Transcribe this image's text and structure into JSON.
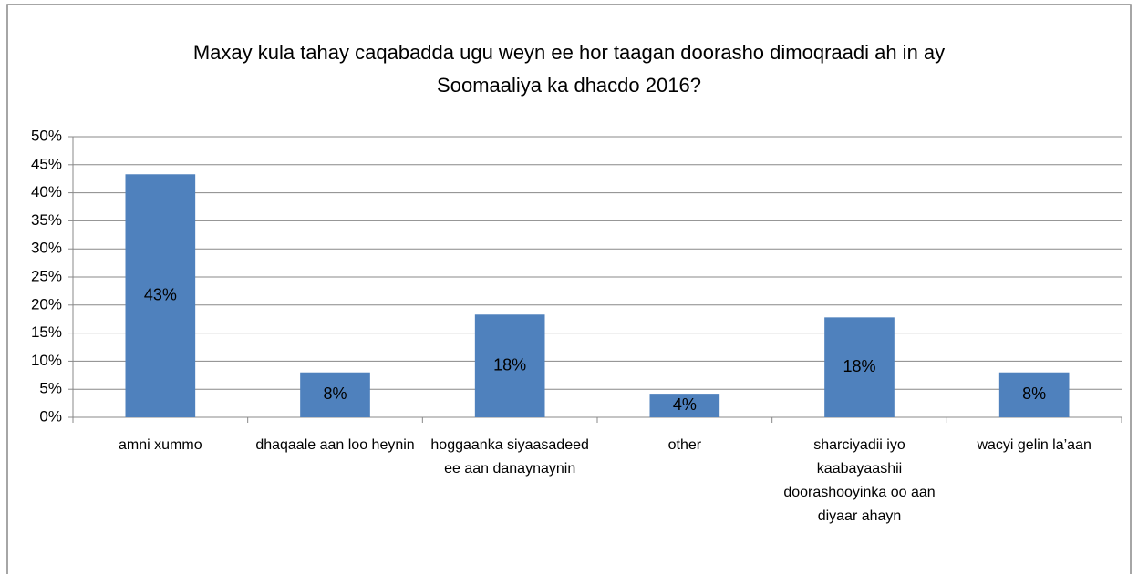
{
  "chart_data": {
    "type": "bar",
    "title": "Maxay kula tahay caqabadda ugu weyn ee hor taagan doorasho dimoqraadi ah in ay Soomaaliya ka dhacdo 2016?",
    "categories": [
      "amni xummo",
      "dhaqaale aan loo heynin",
      "hoggaanka siyaasadeed ee aan danaynaynin",
      "other",
      "sharciyadii iyo kaabayaashii doorashooyinka oo aan diyaar ahayn",
      "wacyi gelin la’aan"
    ],
    "values": [
      43.3,
      8.0,
      18.3,
      4.2,
      17.8,
      8.0
    ],
    "value_labels": [
      "43%",
      "8%",
      "18%",
      "4%",
      "18%",
      "8%"
    ],
    "color": "#4f81bd",
    "ylim": [
      0,
      50
    ],
    "yticks": [
      {
        "value": 0,
        "label": "0%"
      },
      {
        "value": 5,
        "label": "5%"
      },
      {
        "value": 10,
        "label": "10%"
      },
      {
        "value": 15,
        "label": "15%"
      },
      {
        "value": 20,
        "label": "20%"
      },
      {
        "value": 25,
        "label": "25%"
      },
      {
        "value": 30,
        "label": "30%"
      },
      {
        "value": 35,
        "label": "35%"
      },
      {
        "value": 40,
        "label": "40%"
      },
      {
        "value": 45,
        "label": "45%"
      },
      {
        "value": 50,
        "label": "50%"
      }
    ],
    "grid": true
  }
}
